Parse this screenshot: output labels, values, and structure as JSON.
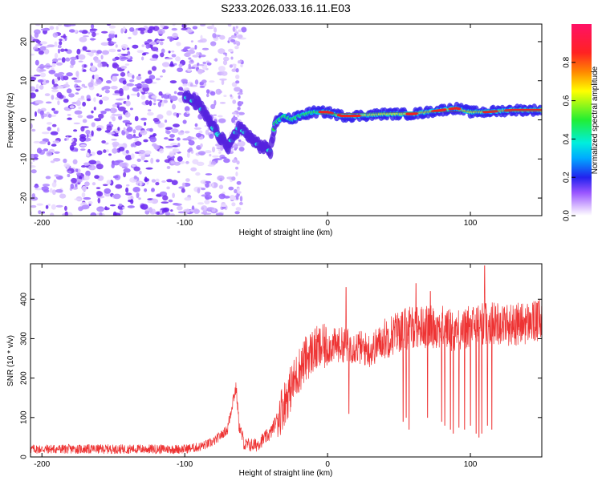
{
  "title": "S233.2026.033.16.11.E03",
  "chart_data": [
    {
      "type": "heatmap",
      "name": "spectrogram",
      "xlabel": "Height of straight line (km)",
      "ylabel": "Frequency (Hz)",
      "xlim": [
        -208,
        150
      ],
      "ylim": [
        -24.5,
        24.5
      ],
      "xticks": [
        -200,
        -100,
        0,
        100
      ],
      "yticks": [
        -20,
        -10,
        0,
        10,
        20
      ],
      "colorbar": {
        "label": "Normalized spectral amplitude",
        "range": [
          0,
          1
        ],
        "ticks": [
          "0.0",
          "0.2",
          "0.4",
          "0.6",
          "0.8"
        ]
      },
      "ridge": {
        "x": [
          -100,
          -90,
          -82,
          -76,
          -70,
          -62,
          -55,
          -50,
          -45,
          -40,
          -37,
          -34,
          -30,
          -25,
          -20,
          -10,
          0,
          10,
          20,
          40,
          60,
          80,
          90,
          100,
          110,
          130,
          150
        ],
        "y": [
          6,
          4,
          -1,
          -4,
          -7,
          -2,
          -4,
          -6,
          -7,
          -8,
          -1,
          0,
          1,
          0,
          1,
          2,
          2,
          1,
          1,
          1.5,
          1.5,
          2.5,
          3,
          2,
          2,
          2.5,
          2.5
        ]
      }
    },
    {
      "type": "line",
      "name": "snr",
      "xlabel": "Height of straight line (km)",
      "ylabel": "SNR (10 * v/v)",
      "xlim": [
        -208,
        150
      ],
      "ylim": [
        0,
        490
      ],
      "xticks": [
        -200,
        -100,
        0,
        100
      ],
      "yticks": [
        0,
        100,
        200,
        300,
        400
      ],
      "color": "#ee3333",
      "envelope": {
        "x": [
          -208,
          -100,
          -90,
          -80,
          -70,
          -66,
          -64,
          -62,
          -58,
          -50,
          -40,
          -35,
          -30,
          -25,
          -20,
          -15,
          -10,
          0,
          10,
          20,
          30,
          40,
          50,
          60,
          70,
          80,
          90,
          100,
          110,
          120,
          130,
          140,
          150
        ],
        "y": [
          20,
          20,
          25,
          38,
          70,
          150,
          175,
          80,
          30,
          30,
          60,
          100,
          140,
          180,
          220,
          250,
          270,
          280,
          285,
          280,
          270,
          300,
          320,
          330,
          330,
          330,
          320,
          330,
          340,
          340,
          335,
          340,
          345
        ]
      },
      "spikes": {
        "x": [
          13,
          15,
          53,
          55,
          57,
          62,
          70,
          72,
          80,
          82,
          86,
          88,
          92,
          96,
          100,
          104,
          106,
          108,
          110,
          112,
          115
        ],
        "y": [
          430,
          110,
          90,
          100,
          70,
          440,
          100,
          420,
          90,
          80,
          70,
          60,
          75,
          70,
          80,
          60,
          50,
          60,
          485,
          80,
          70
        ]
      }
    }
  ]
}
